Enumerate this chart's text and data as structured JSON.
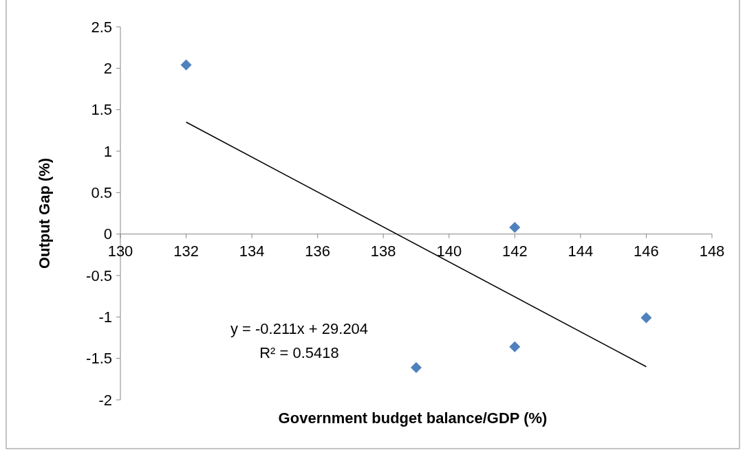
{
  "chart_data": {
    "type": "scatter",
    "xlabel": "Government budget balance/GDP (%)",
    "ylabel": "Output Gap (%)",
    "xlim": [
      130,
      148
    ],
    "xticks": [
      130,
      132,
      134,
      136,
      138,
      140,
      142,
      144,
      146,
      148
    ],
    "ylim": [
      -2,
      2.5
    ],
    "yticks": [
      -2,
      -1.5,
      -1,
      -0.5,
      0,
      0.5,
      1,
      1.5,
      2,
      2.5
    ],
    "grid": false,
    "annotations": [
      "y = -0.211x + 29.204",
      "R² = 0.5418"
    ],
    "series": [
      {
        "color": "#4f81bd",
        "marker": "diamond",
        "x": [
          132,
          142,
          139,
          142,
          146
        ],
        "values": [
          2.04,
          0.08,
          -1.61,
          -1.36,
          -1.01
        ]
      },
      {
        "type": "line",
        "color": "#000000",
        "marker": "none",
        "line_style": "solid",
        "x": [
          132,
          146
        ],
        "values": [
          1.35,
          -1.6
        ]
      }
    ]
  }
}
